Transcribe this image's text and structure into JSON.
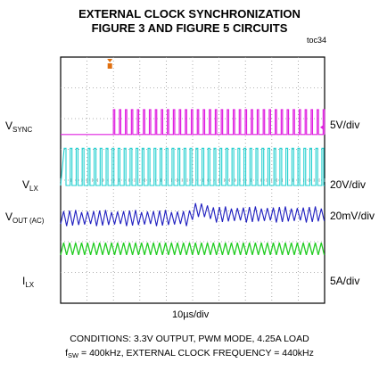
{
  "title_line1": "EXTERNAL CLOCK SYNCHRONIZATION",
  "title_line2": "FIGURE 3 AND FIGURE 5 CIRCUITS",
  "figure_id": "toc34",
  "colors": {
    "vsync": "#e020e0",
    "vlx": "#22d0d0",
    "vout": "#2020c0",
    "ilx": "#22cc22",
    "trigger": "#e07010",
    "grid": "#999999"
  },
  "icons": [
    "trigger-marker-icon",
    "trigger-level-arrow-icon"
  ],
  "chart_data": {
    "type": "line",
    "x_scale_label": "10µs/div",
    "x_divisions": 10,
    "y_divisions": 8,
    "grid": true,
    "series": [
      {
        "name": "V_SYNC",
        "label_main": "V",
        "label_sub": "SYNC",
        "scale": "5V/div",
        "description_free": true,
        "clock_start_div": 2.0,
        "period_div": 0.227,
        "levels_div": [
          0,
          0.95
        ]
      },
      {
        "name": "V_LX",
        "label_main": "V",
        "label_sub": "LX",
        "scale": "20V/div",
        "period_div": 0.227,
        "levels_div": [
          0,
          1.15
        ]
      },
      {
        "name": "V_OUT (AC)",
        "label_main": "V",
        "label_sub": "OUT (AC)",
        "scale": "20mV/div",
        "period_div": 0.227,
        "ripple_div": 0.45,
        "step_at_div": 5.3
      },
      {
        "name": "I_LX",
        "label_main": "I",
        "label_sub": "LX",
        "scale": "5A/div",
        "period_div": 0.227,
        "ripple_div": 0.4
      }
    ]
  },
  "conditions_line1": "CONDITIONS: 3.3V OUTPUT, PWM MODE, 4.25A LOAD",
  "conditions_f_main": "f",
  "conditions_f_sub": "SW",
  "conditions_line2_rest": " = 400kHz, EXTERNAL CLOCK FREQUENCY = 440kHz"
}
